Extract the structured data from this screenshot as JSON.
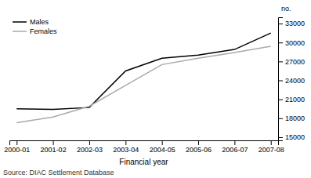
{
  "chart_data": {
    "type": "line",
    "categories": [
      "2000-01",
      "2001-02",
      "2002-03",
      "2003-04",
      "2004-05",
      "2005-06",
      "2006-07",
      "2007-08"
    ],
    "series": [
      {
        "name": "Males",
        "color": "#000000",
        "values": [
          19500,
          19400,
          19700,
          25500,
          27500,
          28000,
          28900,
          31500
        ]
      },
      {
        "name": "Females",
        "color": "#aaaaaa",
        "values": [
          17300,
          18200,
          19900,
          23200,
          26500,
          27500,
          28400,
          29400
        ]
      }
    ],
    "xlabel": "Financial year",
    "ylabel": "no.",
    "source": "Source: DIAC Settlement Database",
    "ylim": [
      14500,
      34000
    ],
    "yticks": [
      15000,
      18000,
      21000,
      24000,
      27000,
      30000,
      33000
    ],
    "legend": "upper left",
    "grid": false
  }
}
